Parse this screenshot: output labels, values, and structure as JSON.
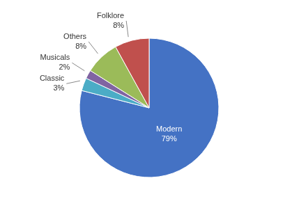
{
  "chart_data": {
    "type": "pie",
    "categories": [
      "Modern",
      "Classic",
      "Musicals",
      "Others",
      "Folklore"
    ],
    "values": [
      79,
      3,
      2,
      8,
      8
    ],
    "value_labels": [
      "79%",
      "3%",
      "2%",
      "8%",
      "8%"
    ],
    "colors": [
      "#4472C4",
      "#4BACC6",
      "#8064A2",
      "#9BBB59",
      "#C0504D"
    ],
    "data_labels": true
  }
}
